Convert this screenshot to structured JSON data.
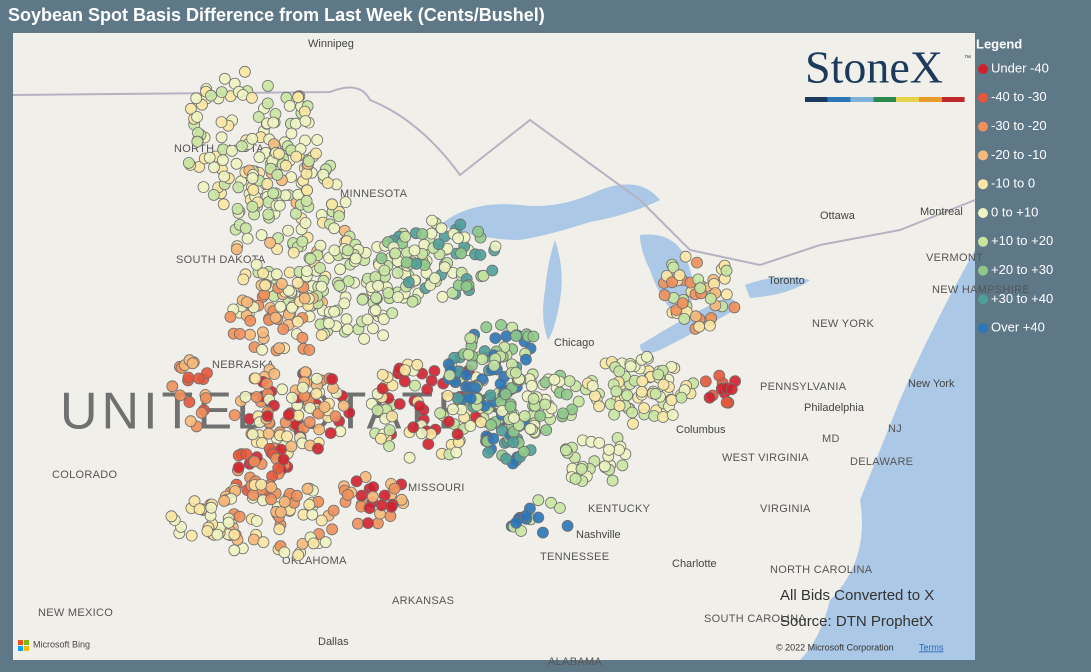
{
  "header": {
    "title": "Soybean Spot Basis Difference from Last Week (Cents/Bushel)"
  },
  "legend": {
    "title": "Legend",
    "items": [
      {
        "label": "Under -40",
        "color": "#d0202e"
      },
      {
        "label": "-40 to -30",
        "color": "#e5573a"
      },
      {
        "label": "-30 to -20",
        "color": "#f08f5a"
      },
      {
        "label": "-20 to -10",
        "color": "#f6b97a"
      },
      {
        "label": "-10 to 0",
        "color": "#fbe7a3"
      },
      {
        "label": "0 to +10",
        "color": "#eef4c2"
      },
      {
        "label": "+10 to +20",
        "color": "#c8e5a2"
      },
      {
        "label": "+20 to +30",
        "color": "#8ec98a"
      },
      {
        "label": "+30 to +40",
        "color": "#4e9e9a"
      },
      {
        "label": "Over +40",
        "color": "#2a76b8"
      }
    ]
  },
  "logo": {
    "text": "StoneX",
    "mark": "™"
  },
  "map": {
    "labels": [
      "Winnipeg",
      "NORTH DAKOTA",
      "MINNESOTA",
      "SOUTH DAKOTA",
      "NEBRASKA",
      "UNITED STATES",
      "COLORADO",
      "NEW MEXICO",
      "OKLAHOMA",
      "ARKANSAS",
      "MISSOURI",
      "Dallas",
      "ALABAMA",
      "TENNESSEE",
      "Nashville",
      "KENTUCKY",
      "Chicago",
      "Columbus",
      "WEST VIRGINIA",
      "VIRGINIA",
      "NORTH CAROLINA",
      "Charlotte",
      "SOUTH CAROLINA",
      "PENNSYLVANIA",
      "Philadelphia",
      "New York",
      "NEW YORK",
      "NJ",
      "MD",
      "DELAWARE",
      "Toronto",
      "Ottawa",
      "Montreal",
      "VERMONT",
      "NEW HAMPSHIRE"
    ],
    "note": "All Bids Converted to X",
    "source": "Source: DTN ProphetX",
    "attribution": "Microsoft Bing",
    "copyright": "© 2022 Microsoft Corporation",
    "terms": "Terms"
  }
}
